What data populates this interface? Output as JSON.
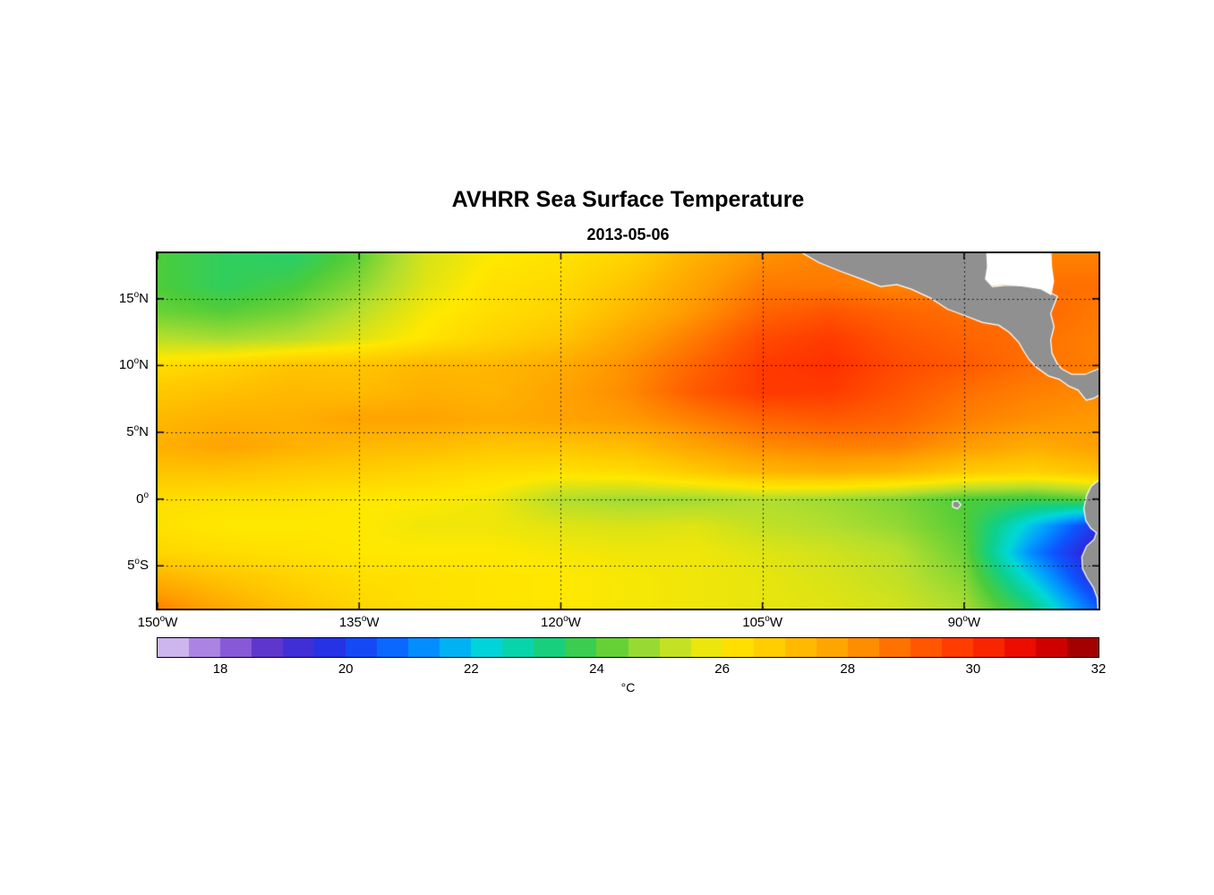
{
  "chart_data": {
    "type": "heatmap",
    "title": "AVHRR Sea Surface Temperature",
    "subtitle": "2013-05-06",
    "degree_symbol": "o",
    "map_bounds": {
      "lon_w": 150,
      "lon_e": 80,
      "lat_n": 18.4,
      "lat_s": -8.2
    },
    "x_axis": {
      "name": "longitude",
      "ticks": [
        {
          "lonW": 150,
          "num": "150",
          "suffix": "W"
        },
        {
          "lonW": 135,
          "num": "135",
          "suffix": "W"
        },
        {
          "lonW": 120,
          "num": "120",
          "suffix": "W"
        },
        {
          "lonW": 105,
          "num": "105",
          "suffix": "W"
        },
        {
          "lonW": 90,
          "num": "90",
          "suffix": "W"
        }
      ]
    },
    "y_axis": {
      "name": "latitude",
      "ticks": [
        {
          "lat": 15,
          "num": "15",
          "suffix": "N"
        },
        {
          "lat": 10,
          "num": "10",
          "suffix": "N"
        },
        {
          "lat": 5,
          "num": "5",
          "suffix": "N"
        },
        {
          "lat": 0,
          "num": "0",
          "suffix": ""
        },
        {
          "lat": -5,
          "num": "5",
          "suffix": "S"
        }
      ]
    },
    "gridline_lons_W": [
      135,
      120,
      105,
      90
    ],
    "gridline_lats": [
      15,
      10,
      5,
      0,
      -5
    ],
    "grid_lons_W": [
      150,
      145,
      140,
      135,
      130,
      125,
      120,
      115,
      110,
      105,
      100,
      95,
      90,
      85,
      80
    ],
    "grid_lats": [
      18,
      16,
      14,
      12,
      10,
      8,
      6,
      4,
      2,
      0,
      -2,
      -4,
      -6,
      -8
    ],
    "sst_grid_degC": [
      [
        24.0,
        23.6,
        23.5,
        24.2,
        25.5,
        26.0,
        26.2,
        26.6,
        27.5,
        28.2,
        28.5,
        28.5,
        28.5,
        28.5,
        28.5
      ],
      [
        24.0,
        23.6,
        23.9,
        24.6,
        25.6,
        26.2,
        26.4,
        27.0,
        27.8,
        28.6,
        28.6,
        28.4,
        28.5,
        28.8,
        28.8
      ],
      [
        24.3,
        24.1,
        24.4,
        25.1,
        25.9,
        26.3,
        26.6,
        27.3,
        28.1,
        29.0,
        29.3,
        29.0,
        28.8,
        29.0,
        28.6
      ],
      [
        25.1,
        24.9,
        25.1,
        25.6,
        26.1,
        26.6,
        27.0,
        27.8,
        28.6,
        29.5,
        29.8,
        29.3,
        29.0,
        28.8,
        28.5
      ],
      [
        26.3,
        26.6,
        27.0,
        27.0,
        27.3,
        27.3,
        27.6,
        28.2,
        29.0,
        29.8,
        30.0,
        29.5,
        29.2,
        28.8,
        28.5
      ],
      [
        26.9,
        27.1,
        27.3,
        27.2,
        27.5,
        27.4,
        27.8,
        28.3,
        29.2,
        29.8,
        29.8,
        29.3,
        28.8,
        28.5,
        28.3
      ],
      [
        27.3,
        27.5,
        27.5,
        27.8,
        27.8,
        27.6,
        27.8,
        28.0,
        28.5,
        29.0,
        29.2,
        29.0,
        28.5,
        28.2,
        28.0
      ],
      [
        27.5,
        27.8,
        27.5,
        27.3,
        27.2,
        27.0,
        27.0,
        27.2,
        27.8,
        28.3,
        28.5,
        28.5,
        28.0,
        27.6,
        27.9
      ],
      [
        27.0,
        27.0,
        26.8,
        26.7,
        26.5,
        26.3,
        26.2,
        26.3,
        26.8,
        27.3,
        27.5,
        27.3,
        26.8,
        26.6,
        27.0
      ],
      [
        26.3,
        26.2,
        26.2,
        26.0,
        26.0,
        25.8,
        25.0,
        24.8,
        24.8,
        25.0,
        24.8,
        24.5,
        24.0,
        23.8,
        24.2
      ],
      [
        26.2,
        26.0,
        26.0,
        26.0,
        25.8,
        25.8,
        25.6,
        25.5,
        25.6,
        25.2,
        25.0,
        24.7,
        24.1,
        22.0,
        19.8
      ],
      [
        26.5,
        26.3,
        26.2,
        26.0,
        26.0,
        26.0,
        25.9,
        25.8,
        25.8,
        25.6,
        25.4,
        25.1,
        24.3,
        21.2,
        19.0
      ],
      [
        27.5,
        27.0,
        26.6,
        26.3,
        26.2,
        26.1,
        26.0,
        25.9,
        25.8,
        25.7,
        25.5,
        25.2,
        24.6,
        22.2,
        19.5
      ],
      [
        28.4,
        27.6,
        27.0,
        26.5,
        26.2,
        26.1,
        26.0,
        25.9,
        25.8,
        25.7,
        25.6,
        25.4,
        24.9,
        23.2,
        20.5
      ]
    ],
    "colorbar": {
      "range": [
        17,
        32
      ],
      "step": 0.5,
      "ticks": [
        18,
        20,
        22,
        24,
        26,
        28,
        30,
        32
      ],
      "unit": "°C",
      "colormap_stops": [
        {
          "t": 17.0,
          "c": "#DCCFF2"
        },
        {
          "t": 18.0,
          "c": "#9B6BDE"
        },
        {
          "t": 18.8,
          "c": "#5A32CC"
        },
        {
          "t": 19.6,
          "c": "#2B2BE0"
        },
        {
          "t": 20.5,
          "c": "#0D55FF"
        },
        {
          "t": 21.5,
          "c": "#00A0FF"
        },
        {
          "t": 22.3,
          "c": "#00D8D8"
        },
        {
          "t": 23.1,
          "c": "#0ED08A"
        },
        {
          "t": 24.0,
          "c": "#4CCC3A"
        },
        {
          "t": 25.0,
          "c": "#B2DE2F"
        },
        {
          "t": 26.0,
          "c": "#FFE800"
        },
        {
          "t": 27.0,
          "c": "#FFC400"
        },
        {
          "t": 28.0,
          "c": "#FF9B00"
        },
        {
          "t": 29.0,
          "c": "#FF6400"
        },
        {
          "t": 30.0,
          "c": "#FF3000"
        },
        {
          "t": 31.0,
          "c": "#E60000"
        },
        {
          "t": 32.0,
          "c": "#8F0000"
        }
      ]
    },
    "land_color": "#909090",
    "land_polygons": {
      "central_america": [
        [
          102.0,
          18.45
        ],
        [
          100.8,
          17.75
        ],
        [
          99.2,
          17.1
        ],
        [
          97.6,
          16.5
        ],
        [
          96.2,
          15.95
        ],
        [
          95.0,
          16.1
        ],
        [
          93.9,
          15.75
        ],
        [
          92.5,
          15.1
        ],
        [
          91.2,
          14.25
        ],
        [
          90.0,
          13.8
        ],
        [
          88.6,
          13.25
        ],
        [
          87.4,
          13.05
        ],
        [
          86.6,
          12.5
        ],
        [
          85.9,
          11.75
        ],
        [
          85.5,
          11.05
        ],
        [
          85.15,
          10.5
        ],
        [
          84.6,
          9.9
        ],
        [
          83.7,
          9.25
        ],
        [
          82.9,
          9.0
        ],
        [
          82.2,
          8.5
        ],
        [
          81.5,
          8.2
        ],
        [
          80.9,
          7.45
        ],
        [
          80.35,
          7.6
        ],
        [
          80.0,
          7.8
        ],
        [
          80.0,
          9.7
        ],
        [
          81.0,
          9.3
        ],
        [
          82.0,
          9.3
        ],
        [
          82.75,
          9.7
        ],
        [
          83.1,
          10.1
        ],
        [
          83.5,
          10.9
        ],
        [
          83.6,
          11.9
        ],
        [
          83.35,
          12.9
        ],
        [
          83.6,
          13.9
        ],
        [
          83.25,
          14.8
        ],
        [
          83.1,
          15.15
        ],
        [
          84.3,
          15.8
        ],
        [
          85.7,
          15.95
        ],
        [
          87.0,
          15.95
        ],
        [
          87.9,
          15.85
        ],
        [
          88.35,
          16.35
        ],
        [
          88.2,
          17.3
        ],
        [
          88.3,
          18.45
        ]
      ],
      "south_america": [
        [
          80.0,
          1.35
        ],
        [
          80.5,
          0.95
        ],
        [
          80.85,
          0.25
        ],
        [
          81.05,
          -0.7
        ],
        [
          80.9,
          -1.6
        ],
        [
          80.55,
          -2.15
        ],
        [
          80.1,
          -2.5
        ],
        [
          80.3,
          -3.05
        ],
        [
          80.85,
          -3.55
        ],
        [
          81.2,
          -4.35
        ],
        [
          81.15,
          -5.2
        ],
        [
          80.8,
          -5.9
        ],
        [
          80.35,
          -6.6
        ],
        [
          80.05,
          -7.4
        ],
        [
          80.0,
          -8.25
        ]
      ],
      "galapagos": [
        [
          90.8,
          -0.22
        ],
        [
          90.5,
          -0.18
        ],
        [
          90.28,
          -0.42
        ],
        [
          90.5,
          -0.68
        ],
        [
          90.82,
          -0.55
        ]
      ]
    },
    "no_data_polygons": {
      "gulf_of_honduras": [
        [
          88.35,
          18.45
        ],
        [
          88.3,
          17.4
        ],
        [
          88.45,
          16.45
        ],
        [
          87.9,
          15.95
        ],
        [
          86.9,
          16.05
        ],
        [
          85.6,
          15.9
        ],
        [
          84.3,
          15.7
        ],
        [
          83.5,
          15.25
        ],
        [
          83.3,
          16.3
        ],
        [
          83.45,
          17.4
        ],
        [
          83.5,
          18.45
        ]
      ]
    }
  }
}
